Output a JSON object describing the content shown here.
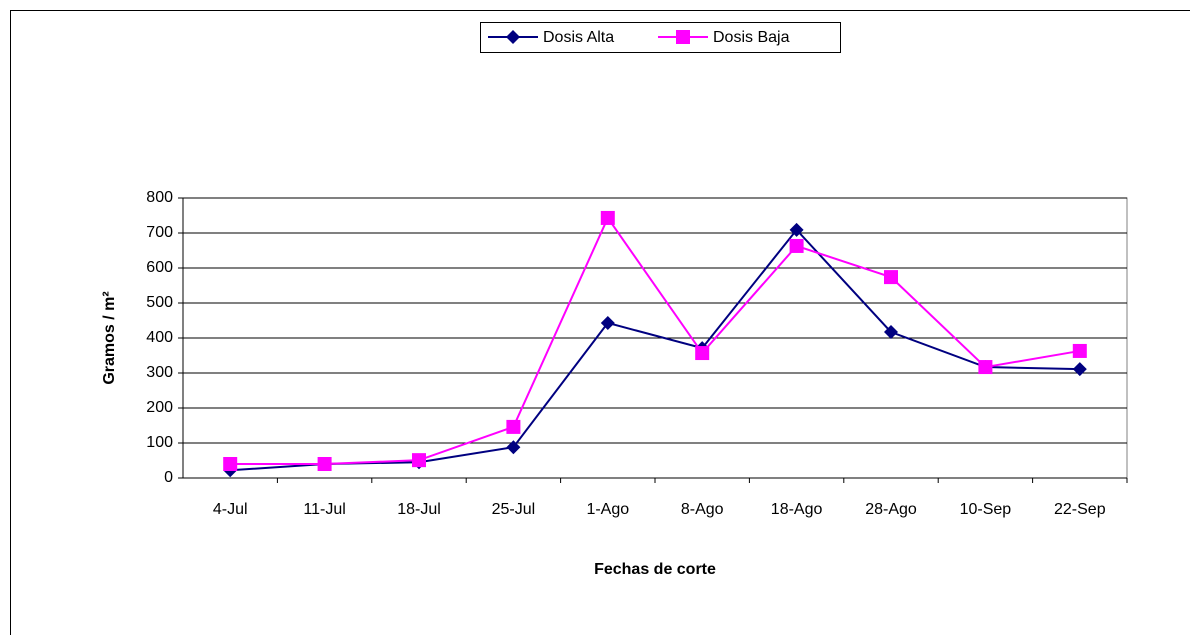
{
  "chart_data": {
    "type": "line",
    "xlabel": "Fechas de corte",
    "ylabel": "Gramos / m²",
    "categories": [
      "4-Jul",
      "11-Jul",
      "18-Jul",
      "25-Jul",
      "1-Ago",
      "8-Ago",
      "18-Ago",
      "28-Ago",
      "10-Sep",
      "22-Sep"
    ],
    "series": [
      {
        "name": "Dosis Alta",
        "color": "#000080",
        "marker": "diamond",
        "values": [
          22,
          40,
          45,
          88,
          443,
          371,
          709,
          417,
          317,
          311
        ]
      },
      {
        "name": "Dosis Baja",
        "color": "#ff00ff",
        "marker": "square",
        "values": [
          40,
          40,
          51,
          146,
          743,
          357,
          663,
          574,
          317,
          363
        ]
      }
    ],
    "ylim": [
      0,
      800
    ],
    "yticks": [
      0,
      100,
      200,
      300,
      400,
      500,
      600,
      700,
      800
    ],
    "grid": true,
    "legend": "top"
  }
}
